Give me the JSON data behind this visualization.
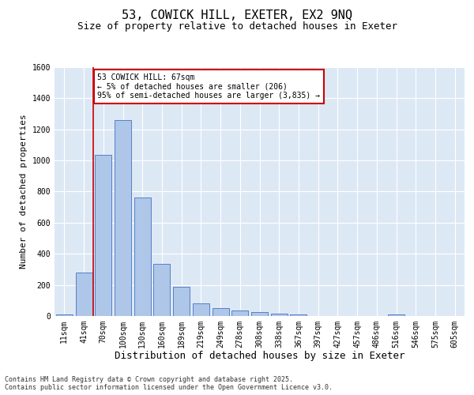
{
  "title_line1": "53, COWICK HILL, EXETER, EX2 9NQ",
  "title_line2": "Size of property relative to detached houses in Exeter",
  "xlabel": "Distribution of detached houses by size in Exeter",
  "ylabel": "Number of detached properties",
  "bar_labels": [
    "11sqm",
    "41sqm",
    "70sqm",
    "100sqm",
    "130sqm",
    "160sqm",
    "189sqm",
    "219sqm",
    "249sqm",
    "278sqm",
    "308sqm",
    "338sqm",
    "367sqm",
    "397sqm",
    "427sqm",
    "457sqm",
    "486sqm",
    "516sqm",
    "546sqm",
    "575sqm",
    "605sqm"
  ],
  "bar_values": [
    10,
    280,
    1035,
    1260,
    760,
    335,
    190,
    80,
    50,
    38,
    25,
    15,
    12,
    0,
    0,
    0,
    0,
    12,
    0,
    0,
    0
  ],
  "bar_color": "#aec6e8",
  "bar_edge_color": "#4472c4",
  "background_color": "#dde8f5",
  "grid_color": "#ffffff",
  "vline_color": "#cc0000",
  "annotation_text": "53 COWICK HILL: 67sqm\n← 5% of detached houses are smaller (206)\n95% of semi-detached houses are larger (3,835) →",
  "annotation_box_color": "#cc0000",
  "ylim": [
    0,
    1600
  ],
  "yticks": [
    0,
    200,
    400,
    600,
    800,
    1000,
    1200,
    1400,
    1600
  ],
  "footer_text": "Contains HM Land Registry data © Crown copyright and database right 2025.\nContains public sector information licensed under the Open Government Licence v3.0.",
  "title_fontsize": 11,
  "subtitle_fontsize": 9,
  "axis_label_fontsize": 8,
  "tick_fontsize": 7,
  "annotation_fontsize": 7,
  "footer_fontsize": 6
}
